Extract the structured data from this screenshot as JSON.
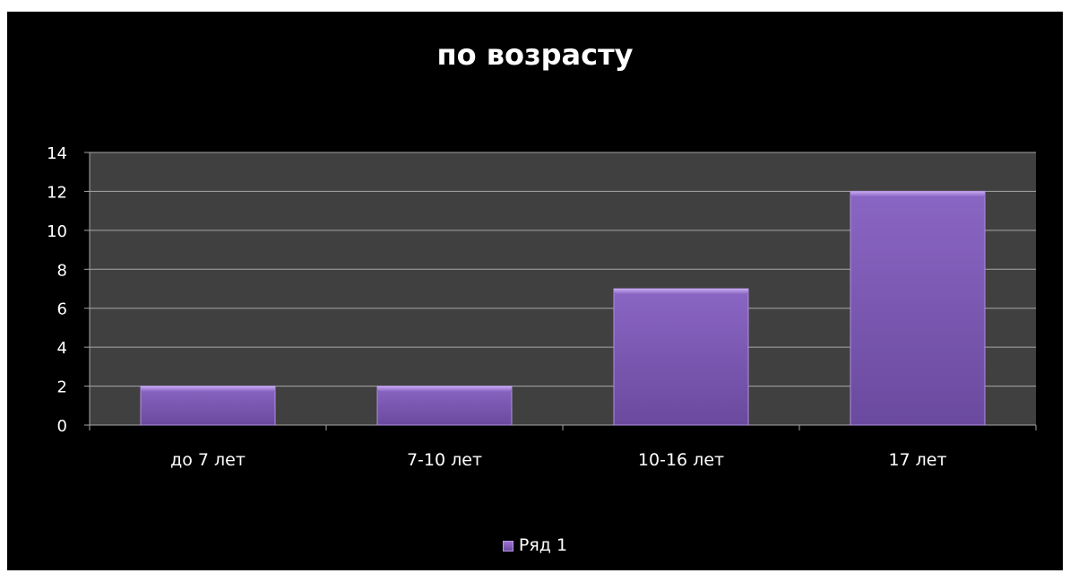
{
  "chart_data": {
    "type": "bar",
    "title": "по возрасту",
    "xlabel": "",
    "ylabel": "",
    "categories": [
      "до 7 лет",
      "7-10 лет",
      "10-16 лет",
      "17 лет"
    ],
    "series": [
      {
        "name": "Ряд 1",
        "values": [
          2,
          2,
          7,
          12
        ]
      }
    ],
    "ylim": [
      0,
      14
    ],
    "yticks": [
      0,
      2,
      4,
      6,
      8,
      10,
      12,
      14
    ],
    "grid": true,
    "legend": "bottom",
    "colors": {
      "background": "#000000",
      "plot_area": "#404040",
      "gridline": "#a6a6a6",
      "bar": "#7b58b3",
      "text": "#ffffff"
    }
  }
}
